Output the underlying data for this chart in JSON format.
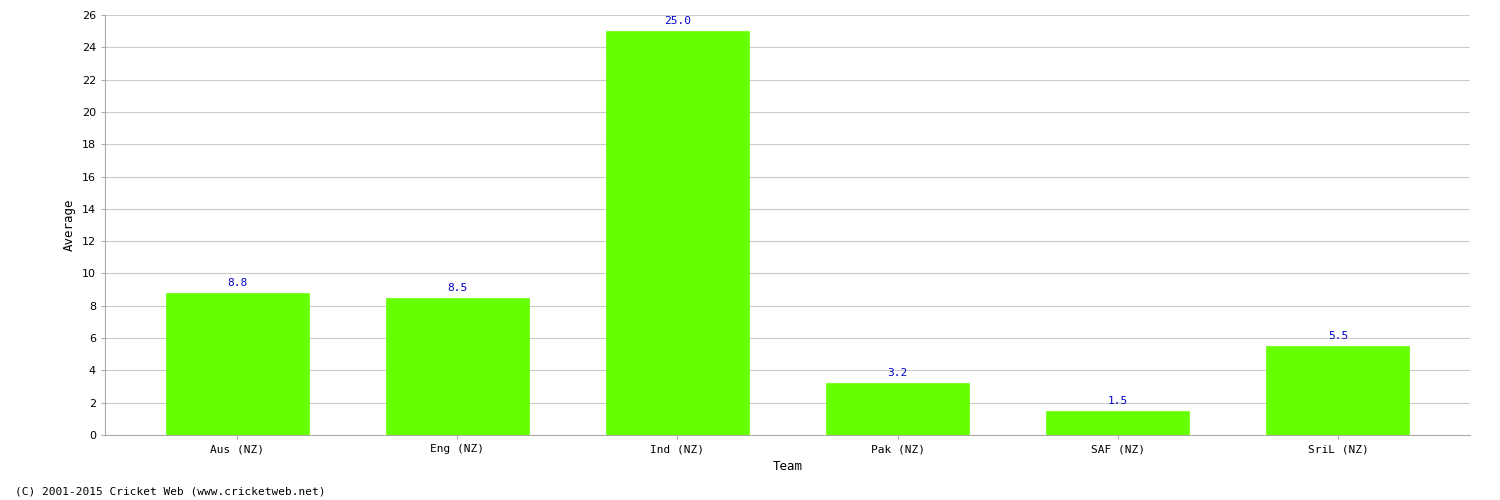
{
  "categories": [
    "Aus (NZ)",
    "Eng (NZ)",
    "Ind (NZ)",
    "Pak (NZ)",
    "SAF (NZ)",
    "SriL (NZ)"
  ],
  "values": [
    8.8,
    8.5,
    25.0,
    3.2,
    1.5,
    5.5
  ],
  "bar_color": "#66ff00",
  "bar_edge_color": "#66ff00",
  "xlabel": "Team",
  "ylabel": "Average",
  "ylim": [
    0,
    26
  ],
  "yticks": [
    0,
    2,
    4,
    6,
    8,
    10,
    12,
    14,
    16,
    18,
    20,
    22,
    24,
    26
  ],
  "label_color": "#0000cc",
  "label_fontsize": 8,
  "tick_fontsize": 8,
  "xlabel_fontsize": 9,
  "ylabel_fontsize": 9,
  "background_color": "#ffffff",
  "grid_color": "#cccccc",
  "footer_text": "(C) 2001-2015 Cricket Web (www.cricketweb.net)",
  "footer_fontsize": 8,
  "bar_width": 0.65
}
